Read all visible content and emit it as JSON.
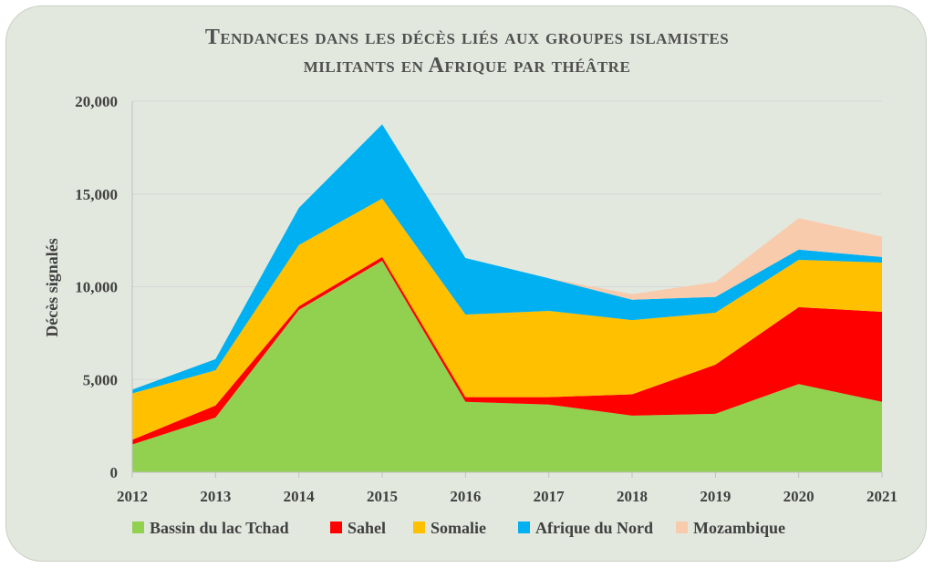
{
  "title_lines": [
    "Tendances dans les décès liés aux groupes islamistes",
    "militants en Afrique par théâtre"
  ],
  "colors": {
    "Bassin du lac Tchad": "#92d050",
    "Sahel": "#ff0000",
    "Somalie": "#ffc000",
    "Afrique du Nord": "#00b0f0",
    "Mozambique": "#f8cbad"
  },
  "chart_data": {
    "type": "area",
    "stacked": true,
    "title": "Tendances dans les décès liés aux groupes islamistes militants en Afrique par théâtre",
    "xlabel": "",
    "ylabel": "Décès signalés",
    "x": [
      "2012",
      "2013",
      "2014",
      "2015",
      "2016",
      "2017",
      "2018",
      "2019",
      "2020",
      "2021"
    ],
    "ylim": [
      0,
      20000
    ],
    "yticks": [
      0,
      5000,
      10000,
      15000,
      20000
    ],
    "ytick_labels": [
      "0",
      "5,000",
      "10,000",
      "15,000",
      "20,000"
    ],
    "grid": true,
    "legend_position": "bottom",
    "series": [
      {
        "name": "Bassin du lac Tchad",
        "values": [
          1500,
          2950,
          8750,
          11400,
          3800,
          3650,
          3050,
          3150,
          4750,
          3800
        ]
      },
      {
        "name": "Sahel",
        "values": [
          250,
          650,
          200,
          200,
          250,
          400,
          1150,
          2650,
          4150,
          4850
        ]
      },
      {
        "name": "Somalie",
        "values": [
          2500,
          1900,
          3300,
          3150,
          4450,
          4650,
          4000,
          2800,
          2550,
          2650
        ]
      },
      {
        "name": "Afrique du Nord",
        "values": [
          200,
          600,
          2000,
          4000,
          3050,
          1750,
          1100,
          850,
          550,
          300
        ]
      },
      {
        "name": "Mozambique",
        "values": [
          0,
          0,
          0,
          0,
          0,
          0,
          300,
          800,
          1700,
          1100
        ]
      }
    ]
  }
}
